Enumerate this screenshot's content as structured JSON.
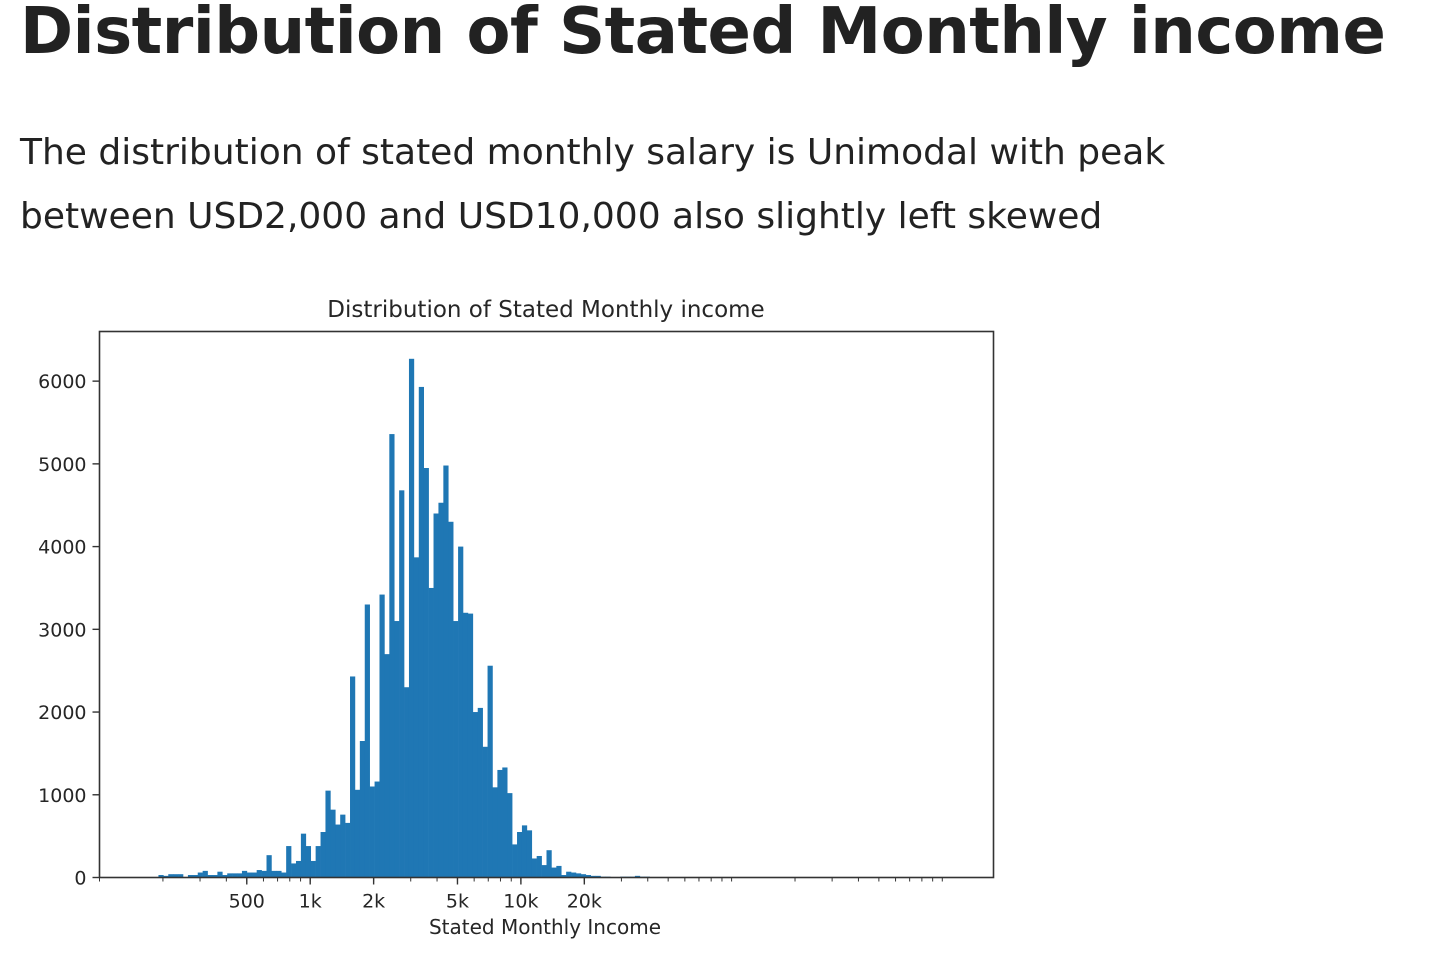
{
  "page": {
    "heading": "Distribution of Stated Monthly income",
    "description": "The distribution of stated monthly salary is Unimodal with peak between USD2,000 and USD10,000 also slightly left skewed"
  },
  "chart_data": {
    "type": "bar",
    "title": "Distribution of Stated Monthly income",
    "xlabel": "Stated Monthly Income",
    "ylabel": "",
    "x_scale": "log",
    "xlim": [
      100,
      1750000
    ],
    "ylim": [
      0,
      6600
    ],
    "color": "#1f77b4",
    "grid": false,
    "yticks": [
      {
        "value": 0,
        "label": "0"
      },
      {
        "value": 1000,
        "label": "1000"
      },
      {
        "value": 2000,
        "label": "2000"
      },
      {
        "value": 3000,
        "label": "3000"
      },
      {
        "value": 4000,
        "label": "4000"
      },
      {
        "value": 5000,
        "label": "5000"
      },
      {
        "value": 6000,
        "label": "6000"
      }
    ],
    "xticks": [
      {
        "value": 500,
        "label": "500"
      },
      {
        "value": 1000,
        "label": "1k"
      },
      {
        "value": 2000,
        "label": "2k"
      },
      {
        "value": 5000,
        "label": "5k"
      },
      {
        "value": 10000,
        "label": "10k"
      },
      {
        "value": 20000,
        "label": "20k"
      }
    ],
    "bin_edges_start": 100,
    "bin_edges_end": 1750000,
    "counts": [
      0,
      0,
      0,
      0,
      0,
      0,
      0,
      0,
      0,
      0,
      0,
      0,
      30,
      20,
      40,
      40,
      40,
      0,
      30,
      30,
      60,
      80,
      30,
      30,
      70,
      30,
      50,
      50,
      50,
      80,
      60,
      60,
      90,
      80,
      270,
      80,
      80,
      60,
      380,
      170,
      200,
      530,
      380,
      200,
      380,
      550,
      1050,
      820,
      640,
      760,
      660,
      2430,
      1060,
      1650,
      3300,
      1100,
      1160,
      3420,
      2700,
      5360,
      3100,
      4680,
      2300,
      6270,
      3870,
      5930,
      4950,
      3500,
      4400,
      4530,
      4980,
      4300,
      3100,
      4000,
      3200,
      3190,
      2000,
      2050,
      1580,
      2560,
      1090,
      1300,
      1330,
      1020,
      400,
      550,
      630,
      570,
      230,
      260,
      150,
      330,
      120,
      140,
      30,
      70,
      60,
      50,
      40,
      30,
      20,
      20,
      10,
      10,
      0,
      0,
      10,
      10,
      10,
      20,
      10,
      10,
      0,
      0,
      0,
      0,
      0,
      0,
      0,
      0,
      0,
      0,
      0,
      0,
      0,
      0,
      0,
      0,
      0,
      0,
      0,
      0,
      0,
      0,
      0,
      0,
      0,
      0,
      0,
      0,
      0,
      0,
      0,
      0,
      0,
      0,
      0,
      0,
      0,
      0,
      0,
      0,
      0,
      0,
      0,
      0,
      0,
      0,
      0,
      0,
      0,
      0,
      0,
      0,
      0,
      0,
      0,
      0,
      0,
      0,
      0,
      0,
      0,
      0,
      0,
      0,
      0,
      0,
      0,
      0,
      0,
      0
    ]
  }
}
